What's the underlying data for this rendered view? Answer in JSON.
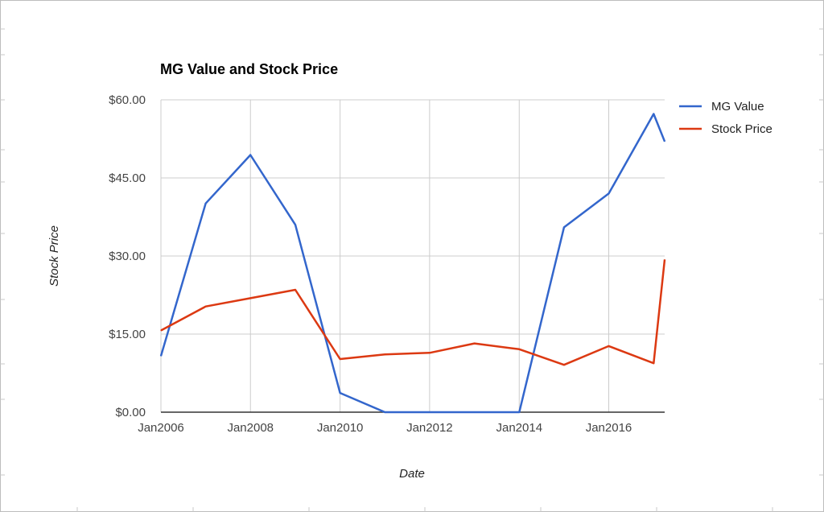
{
  "chart_data": {
    "type": "line",
    "title": "MG Value and Stock Price",
    "xlabel": "Date",
    "ylabel": "Stock Price",
    "x": [
      "2006-01-01",
      "2007-01-01",
      "2008-01-01",
      "2009-01-01",
      "2010-01-01",
      "2011-01-01",
      "2012-01-01",
      "2013-01-01",
      "2014-01-01",
      "2015-01-01",
      "2016-01-01",
      "2017-01-01",
      "2017-04-01"
    ],
    "x_ticks": [
      "Jan2006",
      "Jan2008",
      "Jan2010",
      "Jan2012",
      "Jan2014",
      "Jan2016"
    ],
    "x_range": [
      "2006-01-01",
      "2017-04-01"
    ],
    "y_ticks": [
      "$0.00",
      "$15.00",
      "$30.00",
      "$45.00",
      "$60.00"
    ],
    "ylim": [
      0,
      60
    ],
    "grid": true,
    "legend_position": "right",
    "series": [
      {
        "name": "MG Value",
        "color": "#3366cc",
        "values": [
          10.8,
          40.1,
          49.4,
          36.0,
          3.7,
          0.0,
          0.0,
          0.0,
          0.0,
          35.5,
          42.0,
          57.3,
          52.0
        ]
      },
      {
        "name": "Stock Price",
        "color": "#dc3912",
        "values": [
          15.7,
          20.3,
          21.9,
          23.5,
          10.2,
          11.1,
          11.4,
          13.2,
          12.1,
          9.1,
          12.7,
          9.4,
          29.3
        ]
      }
    ]
  }
}
